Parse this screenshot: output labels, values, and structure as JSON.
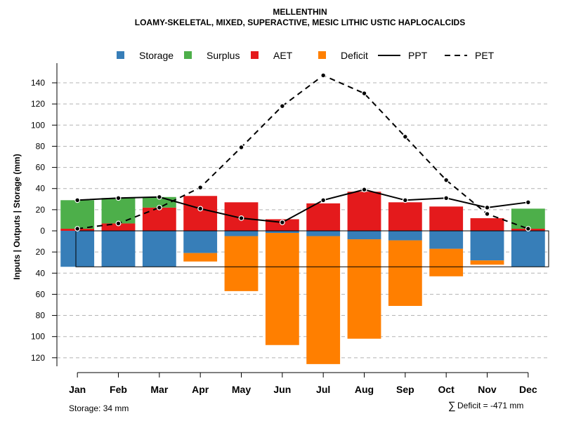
{
  "chart_data": {
    "type": "bar",
    "title": "MELLENTHIN",
    "subtitle": "LOAMY-SKELETAL, MIXED, SUPERACTIVE, MESIC LITHIC USTIC HAPLOCALCIDS",
    "ylabel": "Inputs | Outputs | Storage    (mm)",
    "xlabel": "",
    "ylim": [
      -130,
      150
    ],
    "yticks": [
      140,
      120,
      100,
      80,
      60,
      40,
      20,
      0,
      -20,
      -40,
      -60,
      -80,
      -100,
      -120
    ],
    "ytick_labels": [
      "140",
      "120",
      "100",
      "80",
      "60",
      "40",
      "20",
      "0",
      "20",
      "40",
      "60",
      "80",
      "100",
      "120"
    ],
    "grid": true,
    "legend_position": "top",
    "categories": [
      "Jan",
      "Feb",
      "Mar",
      "Apr",
      "May",
      "Jun",
      "Jul",
      "Aug",
      "Sep",
      "Oct",
      "Nov",
      "Dec"
    ],
    "legend": [
      {
        "name": "Storage",
        "kind": "swatch",
        "color": "#377EB8"
      },
      {
        "name": "Surplus",
        "kind": "swatch",
        "color": "#4DAF4A"
      },
      {
        "name": "AET",
        "kind": "swatch",
        "color": "#E41A1C"
      },
      {
        "name": "Deficit",
        "kind": "swatch",
        "color": "#FF7F00"
      },
      {
        "name": "PPT",
        "kind": "line",
        "color": "#000000"
      },
      {
        "name": "PET",
        "kind": "dashed",
        "color": "#000000"
      }
    ],
    "series": [
      {
        "name": "AET",
        "color": "#E41A1C",
        "values": [
          2,
          7,
          22,
          33,
          27,
          11,
          26,
          37,
          27,
          23,
          12,
          2
        ]
      },
      {
        "name": "Surplus",
        "color": "#4DAF4A",
        "values": [
          27,
          24,
          10,
          0,
          0,
          0,
          0,
          0,
          0,
          0,
          0,
          19
        ]
      },
      {
        "name": "Storage",
        "color": "#377EB8",
        "values": [
          34,
          34,
          34,
          21,
          5,
          2,
          5,
          8,
          9,
          17,
          28,
          34
        ]
      },
      {
        "name": "Deficit",
        "color": "#FF7F00",
        "values": [
          0,
          0,
          0,
          8,
          52,
          106,
          121,
          94,
          62,
          26,
          4,
          0
        ]
      },
      {
        "name": "PPT",
        "color": "#000000",
        "values": [
          29,
          31,
          32,
          21,
          12,
          8,
          29,
          39,
          29,
          31,
          22,
          27
        ]
      },
      {
        "name": "PET",
        "color": "#000000",
        "values": [
          2,
          7,
          22,
          41,
          79,
          118,
          147,
          130,
          89,
          48,
          16,
          2
        ]
      }
    ],
    "storage_capacity": 34,
    "annotations": {
      "storage": "Storage: 34 mm",
      "deficit_symbol": "∑",
      "deficit": "Deficit = -471 mm"
    }
  }
}
